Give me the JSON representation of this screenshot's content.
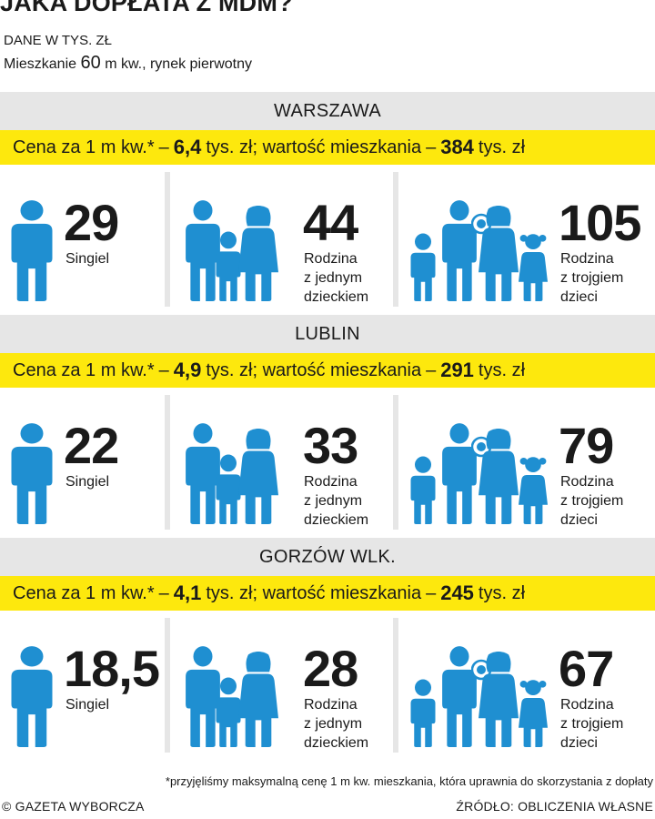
{
  "header": {
    "title": "JAKA DOPŁATA Z MDM?",
    "units": "DANE W TYS. ZŁ",
    "apartment_prefix": "Mieszkanie",
    "apartment_size": "60",
    "apartment_suffix": "m kw., rynek pierwotny"
  },
  "colors": {
    "figure": "#1f8fd1",
    "price_bar": "#fde80d",
    "gray": "#e6e6e6"
  },
  "icons": [
    "single-person-icon",
    "family-one-child-icon",
    "family-three-children-icon"
  ],
  "cities": [
    {
      "name": "WARSZAWA",
      "price": {
        "label_prefix": "Cena za 1 m kw.*",
        "dash1": "–",
        "price_value": "6,4",
        "price_unit": "tys. zł; wartość mieszkania",
        "dash2": "–",
        "total_value": "384",
        "total_unit": "tys. zł"
      },
      "single": {
        "value": "29",
        "label1": "Singiel"
      },
      "family1": {
        "value": "44",
        "label1": "Rodzina",
        "label2": "z jednym",
        "label3": "dzieckiem"
      },
      "family3": {
        "value": "105",
        "label1": "Rodzina",
        "label2": "z trojgiem",
        "label3": "dzieci"
      }
    },
    {
      "name": "LUBLIN",
      "price": {
        "label_prefix": "Cena za 1 m kw.*",
        "dash1": "–",
        "price_value": "4,9",
        "price_unit": "tys. zł; wartość mieszkania",
        "dash2": "–",
        "total_value": "291",
        "total_unit": "tys. zł"
      },
      "single": {
        "value": "22",
        "label1": "Singiel"
      },
      "family1": {
        "value": "33",
        "label1": "Rodzina",
        "label2": "z jednym",
        "label3": "dzieckiem"
      },
      "family3": {
        "value": "79",
        "label1": "Rodzina",
        "label2": "z trojgiem",
        "label3": "dzieci"
      }
    },
    {
      "name": "GORZÓW WLK.",
      "price": {
        "label_prefix": "Cena za 1 m kw.*",
        "dash1": "–",
        "price_value": "4,1",
        "price_unit": "tys. zł; wartość mieszkania",
        "dash2": "–",
        "total_value": "245",
        "total_unit": "tys. zł"
      },
      "single": {
        "value": "18,5",
        "label1": "Singiel"
      },
      "family1": {
        "value": "28",
        "label1": "Rodzina",
        "label2": "z jednym",
        "label3": "dzieckiem"
      },
      "family3": {
        "value": "67",
        "label1": "Rodzina",
        "label2": "z trojgiem",
        "label3": "dzieci"
      }
    }
  ],
  "footnote": "*przyjęliśmy maksymalną cenę 1 m kw. mieszkania, która uprawnia do skorzystania z dopłaty",
  "footer": {
    "copyright": "© GAZETA WYBORCZA",
    "source": "ŹRÓDŁO: OBLICZENIA WŁASNE"
  }
}
